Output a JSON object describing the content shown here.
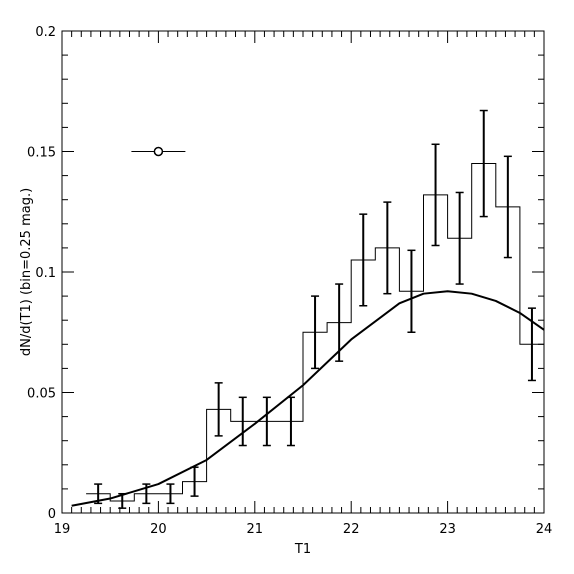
{
  "chart_data": {
    "type": "histogram",
    "xlabel": "T1",
    "ylabel": "dN/d(T1)  (bin=0.25  mag.)",
    "xlim": [
      19,
      24
    ],
    "ylim": [
      0,
      0.2
    ],
    "x_ticks": [
      "19",
      "20",
      "21",
      "22",
      "23",
      "24"
    ],
    "y_ticks": [
      "0",
      "0.05",
      "0.1",
      "0.15",
      "0.2"
    ],
    "grid": false,
    "bin_width": 0.25,
    "histogram": {
      "bin_left_edges": [
        19.25,
        19.5,
        19.75,
        20.0,
        20.25,
        20.5,
        20.75,
        21.0,
        21.25,
        21.5,
        21.75,
        22.0,
        22.25,
        22.5,
        22.75,
        23.0,
        23.25,
        23.5,
        23.75
      ],
      "values": [
        0.008,
        0.005,
        0.008,
        0.008,
        0.013,
        0.043,
        0.038,
        0.038,
        0.038,
        0.075,
        0.079,
        0.105,
        0.11,
        0.092,
        0.132,
        0.114,
        0.145,
        0.127,
        0.07
      ],
      "errors_low": [
        0.004,
        0.003,
        0.004,
        0.004,
        0.006,
        0.011,
        0.01,
        0.01,
        0.01,
        0.015,
        0.016,
        0.019,
        0.019,
        0.017,
        0.021,
        0.019,
        0.022,
        0.021,
        0.015
      ],
      "errors_high": [
        0.004,
        0.003,
        0.004,
        0.004,
        0.006,
        0.011,
        0.01,
        0.01,
        0.01,
        0.015,
        0.016,
        0.019,
        0.019,
        0.017,
        0.021,
        0.019,
        0.022,
        0.021,
        0.015
      ]
    },
    "model_curve": {
      "x": [
        19.1,
        19.5,
        20.0,
        20.5,
        21.0,
        21.5,
        22.0,
        22.5,
        22.75,
        23.0,
        23.25,
        23.5,
        23.75,
        24.0
      ],
      "y": [
        0.003,
        0.006,
        0.012,
        0.022,
        0.037,
        0.053,
        0.072,
        0.087,
        0.091,
        0.092,
        0.091,
        0.088,
        0.083,
        0.076
      ]
    },
    "annotation_point": {
      "x": 20.0,
      "y": 0.15,
      "x_err": 0.28
    }
  }
}
